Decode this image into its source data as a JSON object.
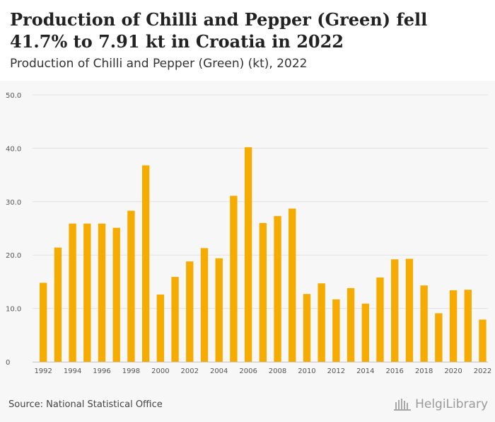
{
  "title": "Production of Chilli and Pepper (Green) fell 41.7% to 7.91 kt in Croatia in 2022",
  "subtitle": "Production of Chilli and Pepper (Green) (kt), 2022",
  "source": "Source: National Statistical Office",
  "brand": "HelgiLibrary",
  "colors": {
    "bar": "#f5ab00",
    "grid": "#e2e2e2",
    "axis_text": "#555555"
  },
  "chart_data": {
    "type": "bar",
    "title": "Production of Chilli and Pepper (Green) fell 41.7% to 7.91 kt in Croatia in 2022",
    "subtitle": "Production of Chilli and Pepper (Green) (kt), 2022",
    "xlabel": "",
    "ylabel": "",
    "ylim": [
      0,
      50
    ],
    "yticks": [
      "0",
      "10.0",
      "20.0",
      "30.0",
      "40.0",
      "50.0"
    ],
    "grid": true,
    "categories": [
      "1992",
      "1993",
      "1994",
      "1995",
      "1996",
      "1997",
      "1998",
      "1999",
      "2000",
      "2001",
      "2002",
      "2003",
      "2004",
      "2005",
      "2006",
      "2007",
      "2008",
      "2009",
      "2010",
      "2011",
      "2012",
      "2013",
      "2014",
      "2015",
      "2016",
      "2017",
      "2018",
      "2019",
      "2020",
      "2021",
      "2022"
    ],
    "xtick_labels": [
      "1992",
      "",
      "1994",
      "",
      "1996",
      "",
      "1998",
      "",
      "2000",
      "",
      "2002",
      "",
      "2004",
      "",
      "2006",
      "",
      "2008",
      "",
      "2010",
      "",
      "2012",
      "",
      "2014",
      "",
      "2016",
      "",
      "2018",
      "",
      "2020",
      "",
      "2022"
    ],
    "values": [
      14.8,
      21.4,
      25.9,
      25.9,
      25.9,
      25.1,
      28.3,
      36.8,
      12.6,
      15.9,
      18.8,
      21.3,
      19.4,
      31.1,
      40.2,
      26.0,
      27.3,
      28.7,
      12.7,
      14.7,
      11.7,
      13.8,
      10.9,
      15.8,
      19.2,
      19.3,
      14.3,
      9.1,
      13.4,
      13.5,
      7.91
    ]
  }
}
